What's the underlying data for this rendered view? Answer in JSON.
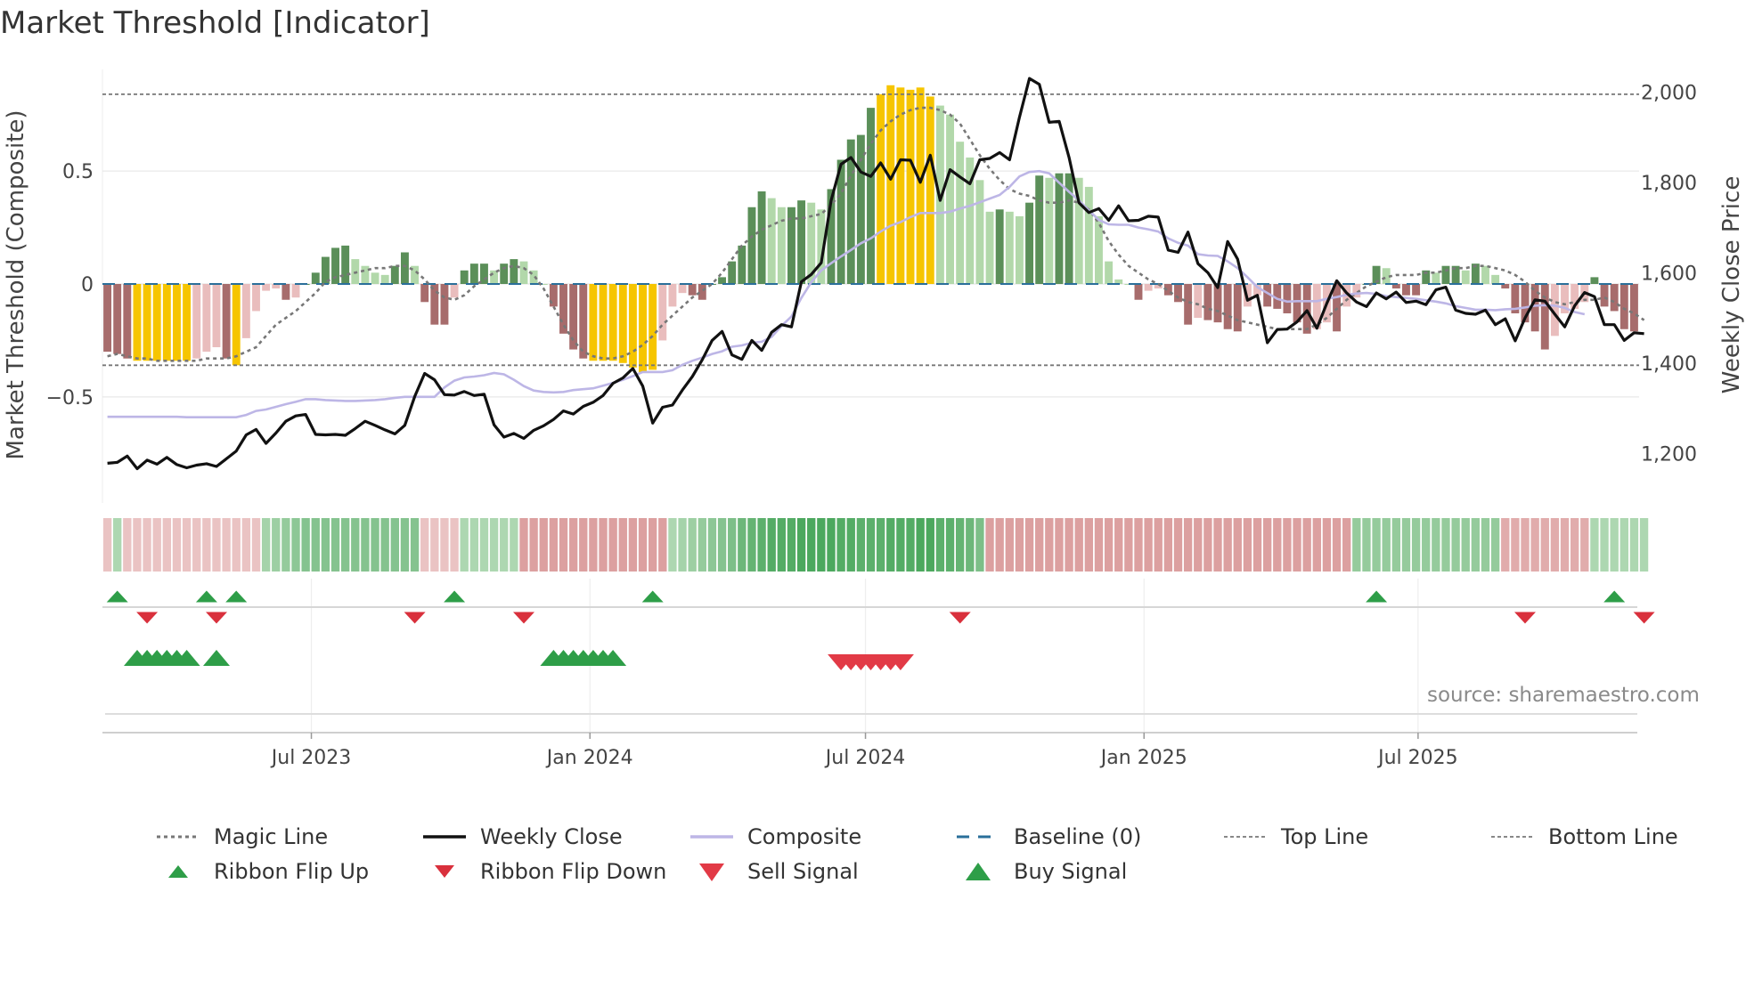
{
  "title": "Market Threshold [Indicator]",
  "source": "source: sharemaestro.com",
  "colors": {
    "strong_pos": "#5b8f59",
    "weak_pos": "#b2d8aa",
    "strong_neg": "#a76c6c",
    "weak_neg": "#e9bdbd",
    "extreme": "#f6c500",
    "close": "#111111",
    "composite": "#bdb6e6",
    "magic": "#777777",
    "baseline": "#2a6f9a",
    "threshold": "#777777",
    "up": "#2e9e48",
    "down": "#d9303c",
    "sell": "#e23a46"
  },
  "chart_data": {
    "type": "bar+line",
    "title": "Market Threshold [Indicator]",
    "x_ticks": [
      "Jul 2023",
      "Jan 2024",
      "Jul 2024",
      "Jan 2025",
      "Jul 2025"
    ],
    "x_range": [
      "2023-02-13",
      "2025-11-24"
    ],
    "left_axis": {
      "label": "Market Threshold (Composite)",
      "range": [
        -0.95,
        0.95
      ],
      "ticks": [
        -0.5,
        0,
        0.5
      ],
      "tick_labels": [
        "−0.5",
        "0",
        "0.5"
      ]
    },
    "right_axis": {
      "label": "Weekly Close Price",
      "range": [
        1100,
        2050
      ],
      "ticks": [
        1200,
        1400,
        1600,
        1800,
        2000
      ],
      "tick_labels": [
        "1,200",
        "1,400",
        "1,600",
        "1,800",
        "2,000"
      ]
    },
    "top_line": 0.84,
    "bottom_line": -0.36,
    "histogram": [
      -0.3,
      -0.31,
      -0.33,
      -0.34,
      -0.34,
      -0.34,
      -0.34,
      -0.34,
      -0.34,
      -0.33,
      -0.3,
      -0.28,
      -0.33,
      -0.36,
      -0.24,
      -0.12,
      -0.03,
      -0.02,
      -0.07,
      -0.06,
      0.0,
      0.05,
      0.12,
      0.16,
      0.17,
      0.11,
      0.08,
      0.05,
      0.04,
      0.08,
      0.14,
      0.08,
      -0.08,
      -0.18,
      -0.18,
      -0.06,
      0.06,
      0.09,
      0.09,
      0.06,
      0.09,
      0.11,
      0.1,
      0.06,
      0.0,
      -0.1,
      -0.22,
      -0.29,
      -0.33,
      -0.34,
      -0.34,
      -0.34,
      -0.35,
      -0.37,
      -0.39,
      -0.38,
      -0.25,
      -0.1,
      -0.04,
      -0.05,
      -0.07,
      0.0,
      0.03,
      0.1,
      0.17,
      0.34,
      0.41,
      0.38,
      0.34,
      0.34,
      0.37,
      0.36,
      0.33,
      0.42,
      0.55,
      0.64,
      0.66,
      0.78,
      0.84,
      0.88,
      0.87,
      0.86,
      0.87,
      0.83,
      0.79,
      0.75,
      0.63,
      0.56,
      0.46,
      0.32,
      0.33,
      0.32,
      0.3,
      0.36,
      0.48,
      0.47,
      0.49,
      0.49,
      0.47,
      0.43,
      0.3,
      0.1,
      0.02,
      0.0,
      -0.07,
      -0.03,
      -0.02,
      -0.05,
      -0.08,
      -0.18,
      -0.15,
      -0.16,
      -0.17,
      -0.2,
      -0.21,
      -0.1,
      -0.05,
      -0.1,
      -0.11,
      -0.13,
      -0.17,
      -0.22,
      -0.2,
      -0.17,
      -0.21,
      -0.1,
      -0.06,
      0.0,
      0.08,
      0.07,
      -0.02,
      -0.05,
      -0.05,
      0.06,
      0.05,
      0.08,
      0.08,
      0.06,
      0.09,
      0.08,
      0.04,
      -0.02,
      -0.13,
      -0.17,
      -0.21,
      -0.29,
      -0.23,
      -0.13,
      -0.11,
      -0.08,
      0.03,
      -0.1,
      -0.12,
      -0.2,
      -0.21
    ],
    "magic_line": [
      -0.32,
      -0.31,
      -0.32,
      -0.33,
      -0.33,
      -0.34,
      -0.34,
      -0.34,
      -0.34,
      -0.34,
      -0.33,
      -0.33,
      -0.33,
      -0.32,
      -0.3,
      -0.28,
      -0.23,
      -0.18,
      -0.15,
      -0.12,
      -0.08,
      -0.04,
      0.01,
      0.03,
      0.04,
      0.05,
      0.06,
      0.07,
      0.07,
      0.08,
      0.08,
      0.06,
      0.02,
      -0.03,
      -0.06,
      -0.07,
      -0.05,
      -0.01,
      0.02,
      0.05,
      0.07,
      0.08,
      0.07,
      0.04,
      -0.02,
      -0.1,
      -0.18,
      -0.25,
      -0.3,
      -0.32,
      -0.33,
      -0.33,
      -0.32,
      -0.3,
      -0.27,
      -0.23,
      -0.18,
      -0.14,
      -0.1,
      -0.06,
      -0.03,
      0.0,
      0.05,
      0.11,
      0.17,
      0.21,
      0.24,
      0.26,
      0.28,
      0.29,
      0.29,
      0.3,
      0.31,
      0.35,
      0.4,
      0.48,
      0.55,
      0.62,
      0.68,
      0.72,
      0.75,
      0.77,
      0.78,
      0.78,
      0.77,
      0.75,
      0.71,
      0.64,
      0.57,
      0.51,
      0.46,
      0.42,
      0.4,
      0.39,
      0.37,
      0.36,
      0.36,
      0.37,
      0.36,
      0.33,
      0.27,
      0.19,
      0.13,
      0.08,
      0.05,
      0.02,
      0.0,
      -0.03,
      -0.06,
      -0.08,
      -0.09,
      -0.11,
      -0.12,
      -0.14,
      -0.16,
      -0.17,
      -0.18,
      -0.19,
      -0.2,
      -0.2,
      -0.2,
      -0.2,
      -0.18,
      -0.15,
      -0.11,
      -0.07,
      -0.04,
      -0.01,
      0.01,
      0.03,
      0.04,
      0.04,
      0.04,
      0.05,
      0.05,
      0.06,
      0.07,
      0.07,
      0.08,
      0.08,
      0.07,
      0.06,
      0.04,
      0.01,
      -0.03,
      -0.06,
      -0.08,
      -0.09,
      -0.08,
      -0.07,
      -0.07,
      -0.06,
      -0.08,
      -0.11,
      -0.13,
      -0.16
    ],
    "weekly_close": [
      1178,
      1180,
      1194,
      1166,
      1185,
      1176,
      1191,
      1175,
      1168,
      1174,
      1177,
      1171,
      1188,
      1205,
      1241,
      1253,
      1222,
      1245,
      1271,
      1283,
      1286,
      1242,
      1241,
      1242,
      1240,
      1255,
      1271,
      1262,
      1252,
      1243,
      1262,
      1326,
      1377,
      1363,
      1330,
      1329,
      1337,
      1328,
      1331,
      1263,
      1236,
      1244,
      1233,
      1251,
      1261,
      1275,
      1294,
      1287,
      1304,
      1313,
      1328,
      1355,
      1367,
      1388,
      1349,
      1267,
      1302,
      1307,
      1340,
      1370,
      1407,
      1450,
      1470,
      1418,
      1408,
      1450,
      1428,
      1468,
      1485,
      1480,
      1580,
      1596,
      1622,
      1760,
      1840,
      1855,
      1823,
      1813,
      1843,
      1807,
      1850,
      1849,
      1800,
      1860,
      1760,
      1828,
      1812,
      1797,
      1850,
      1853,
      1866,
      1850,
      1944,
      2030,
      2017,
      1933,
      1935,
      1855,
      1755,
      1733,
      1742,
      1716,
      1748,
      1715,
      1716,
      1725,
      1723,
      1650,
      1645,
      1690,
      1620,
      1600,
      1567,
      1669,
      1630,
      1539,
      1550,
      1445,
      1474,
      1475,
      1491,
      1516,
      1477,
      1532,
      1582,
      1555,
      1535,
      1525,
      1555,
      1542,
      1557,
      1534,
      1537,
      1529,
      1562,
      1568,
      1517,
      1510,
      1508,
      1517,
      1485,
      1498,
      1449,
      1500,
      1540,
      1537,
      1508,
      1480,
      1527,
      1556,
      1547,
      1485,
      1485,
      1450,
      1467,
      1465
    ],
    "composite_line": [
      1281,
      1281,
      1281,
      1281,
      1281,
      1281,
      1281,
      1281,
      1280,
      1280,
      1280,
      1280,
      1280,
      1280,
      1285,
      1294,
      1297,
      1303,
      1309,
      1314,
      1320,
      1320,
      1318,
      1317,
      1316,
      1316,
      1317,
      1318,
      1320,
      1323,
      1325,
      1325,
      1325,
      1325,
      1346,
      1361,
      1368,
      1370,
      1373,
      1378,
      1375,
      1363,
      1349,
      1339,
      1336,
      1335,
      1336,
      1340,
      1342,
      1344,
      1350,
      1356,
      1363,
      1371,
      1380,
      1380,
      1380,
      1384,
      1396,
      1405,
      1412,
      1420,
      1426,
      1436,
      1439,
      1445,
      1447,
      1458,
      1482,
      1503,
      1544,
      1579,
      1605,
      1621,
      1636,
      1650,
      1665,
      1676,
      1691,
      1704,
      1712,
      1723,
      1732,
      1732,
      1732,
      1735,
      1742,
      1748,
      1756,
      1764,
      1772,
      1790,
      1813,
      1823,
      1825,
      1820,
      1799,
      1779,
      1760,
      1738,
      1717,
      1707,
      1706,
      1706,
      1700,
      1696,
      1691,
      1676,
      1666,
      1660,
      1641,
      1638,
      1637,
      1625,
      1610,
      1590,
      1568,
      1555,
      1542,
      1536,
      1537,
      1537,
      1537,
      1542,
      1546,
      1551,
      1554,
      1555,
      1553,
      1548,
      1546,
      1544,
      1542,
      1539,
      1536,
      1532,
      1526,
      1522,
      1518,
      1518,
      1517,
      1519,
      1520,
      1523,
      1527,
      1528,
      1527,
      1522,
      1513,
      1508
    ],
    "ribbon": [
      -0.2,
      0.3,
      -0.2,
      -0.2,
      -0.2,
      -0.2,
      -0.2,
      -0.2,
      -0.2,
      -0.2,
      -0.2,
      -0.2,
      -0.2,
      -0.2,
      -0.2,
      -0.2,
      0.35,
      0.4,
      0.45,
      0.5,
      0.55,
      0.55,
      0.55,
      0.55,
      0.55,
      0.55,
      0.55,
      0.55,
      0.55,
      0.55,
      0.55,
      0.55,
      -0.2,
      -0.2,
      -0.2,
      -0.2,
      0.3,
      0.3,
      0.3,
      0.3,
      0.3,
      0.3,
      -0.5,
      -0.5,
      -0.5,
      -0.5,
      -0.5,
      -0.5,
      -0.5,
      -0.5,
      -0.5,
      -0.5,
      -0.5,
      -0.5,
      -0.5,
      -0.5,
      -0.5,
      0.3,
      0.35,
      0.4,
      0.45,
      0.5,
      0.55,
      0.6,
      0.7,
      0.75,
      0.8,
      0.85,
      0.85,
      0.85,
      0.9,
      0.9,
      0.9,
      0.9,
      0.85,
      0.85,
      0.8,
      0.8,
      0.8,
      0.85,
      0.85,
      0.85,
      0.9,
      0.9,
      0.8,
      0.8,
      0.75,
      0.7,
      0.6,
      -0.5,
      -0.5,
      -0.5,
      -0.5,
      -0.5,
      -0.5,
      -0.5,
      -0.5,
      -0.5,
      -0.5,
      -0.5,
      -0.5,
      -0.5,
      -0.5,
      -0.5,
      -0.5,
      -0.5,
      -0.5,
      -0.5,
      -0.5,
      -0.5,
      -0.5,
      -0.5,
      -0.5,
      -0.5,
      -0.5,
      -0.5,
      -0.5,
      -0.5,
      -0.5,
      -0.5,
      -0.5,
      -0.5,
      -0.5,
      -0.5,
      -0.5,
      -0.5,
      0.45,
      0.45,
      0.45,
      0.45,
      0.45,
      0.45,
      0.45,
      0.45,
      0.45,
      0.45,
      0.45,
      0.45,
      0.45,
      0.45,
      0.45,
      -0.4,
      -0.4,
      -0.4,
      -0.4,
      -0.4,
      -0.4,
      -0.4,
      -0.4,
      -0.4,
      0.3,
      0.3,
      0.3,
      0.3,
      0.3,
      0.3
    ],
    "ribbon_flip_up_weeks": [
      1,
      10,
      13,
      35,
      55,
      128,
      152
    ],
    "ribbon_flip_down_weeks": [
      4,
      11,
      31,
      42,
      86,
      143,
      155
    ],
    "buy_signal_weeks": [
      3,
      4,
      5,
      6,
      7,
      8,
      11,
      45,
      46,
      47,
      48,
      49,
      50,
      51
    ],
    "sell_signal_weeks": [
      74,
      75,
      76,
      77,
      78,
      79,
      80
    ]
  },
  "legend": {
    "items": [
      {
        "label": "Magic Line",
        "icon": "dotted-line"
      },
      {
        "label": "Weekly Close",
        "icon": "solid-line"
      },
      {
        "label": "Composite",
        "icon": "solid-line-lavender"
      },
      {
        "label": "Baseline (0)",
        "icon": "dashed-line"
      },
      {
        "label": "Top Line",
        "icon": "dotted-line"
      },
      {
        "label": "Bottom Line",
        "icon": "dotted-line"
      },
      {
        "label": "Ribbon Flip Up",
        "icon": "triangle-up"
      },
      {
        "label": "Ribbon Flip Down",
        "icon": "triangle-down"
      },
      {
        "label": "Sell Signal",
        "icon": "triangle-down-large"
      },
      {
        "label": "Buy Signal",
        "icon": "triangle-up-large"
      }
    ]
  }
}
